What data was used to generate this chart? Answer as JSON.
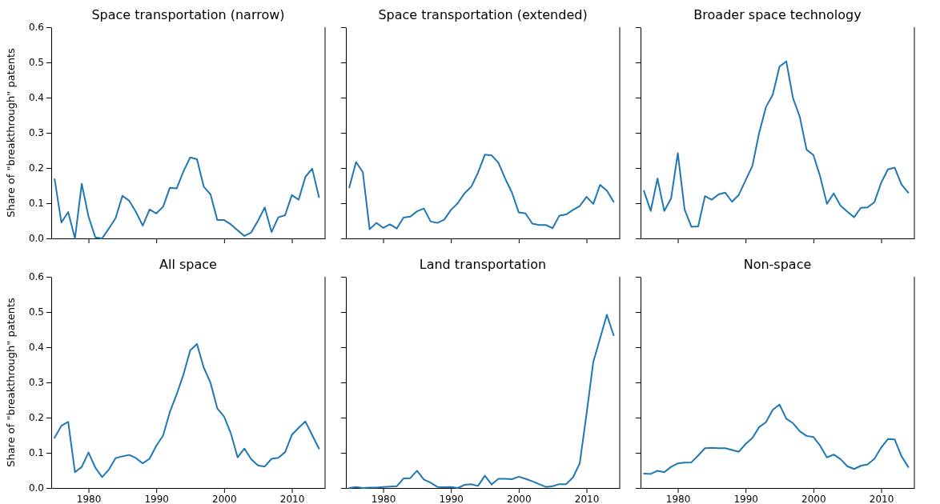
{
  "chart_data": [
    {
      "type": "line",
      "title": "Space transportation (narrow)",
      "ylabel": "Share of \"breakthrough\" patents",
      "tick_labels": "y",
      "xlim": [
        1974.5,
        2014.9
      ],
      "xticks": [
        1980,
        1990,
        2000,
        2010
      ],
      "ylim": [
        0,
        0.6
      ],
      "yticks": [
        {
          "value": 0,
          "label": "0.0"
        },
        0.1,
        0.2,
        0.3,
        0.4,
        0.5,
        0.6
      ],
      "x": [
        1975,
        1976,
        1977,
        1978,
        1979,
        1980,
        1981,
        1982,
        1983,
        1984,
        1985,
        1986,
        1987,
        1988,
        1989,
        1990,
        1991,
        1992,
        1993,
        1994,
        1995,
        1996,
        1997,
        1998,
        1999,
        2000,
        2001,
        2002,
        2003,
        2004,
        2005,
        2006,
        2007,
        2008,
        2009,
        2010,
        2011,
        2012,
        2013,
        2014
      ],
      "series": [
        {
          "color": "#1f77b4",
          "values": [
            0.168,
            0.045,
            0.075,
            0.0,
            0.155,
            0.062,
            0.003,
            0.0,
            0.028,
            0.058,
            0.121,
            0.107,
            0.075,
            0.036,
            0.082,
            0.071,
            0.09,
            0.144,
            0.142,
            0.19,
            0.23,
            0.225,
            0.147,
            0.125,
            0.052,
            0.052,
            0.04,
            0.023,
            0.007,
            0.017,
            0.05,
            0.088,
            0.018,
            0.06,
            0.066,
            0.123,
            0.11,
            0.175,
            0.198,
            0.117
          ]
        }
      ]
    },
    {
      "type": "line",
      "title": "Space transportation (extended)",
      "tick_labels": false,
      "xlim": [
        1974.5,
        2014.9
      ],
      "xticks": [
        1980,
        1990,
        2000,
        2010
      ],
      "ylim": [
        0,
        0.6
      ],
      "yticks": [
        0,
        0.1,
        0.2,
        0.3,
        0.4,
        0.5,
        0.6
      ],
      "x": [
        1975,
        1976,
        1977,
        1978,
        1979,
        1980,
        1981,
        1982,
        1983,
        1984,
        1985,
        1986,
        1987,
        1988,
        1989,
        1990,
        1991,
        1992,
        1993,
        1994,
        1995,
        1996,
        1997,
        1998,
        1999,
        2000,
        2001,
        2002,
        2003,
        2004,
        2005,
        2006,
        2007,
        2008,
        2009,
        2010,
        2011,
        2012,
        2013,
        2014
      ],
      "series": [
        {
          "color": "#1f77b4",
          "values": [
            0.145,
            0.217,
            0.188,
            0.026,
            0.044,
            0.03,
            0.04,
            0.028,
            0.059,
            0.062,
            0.077,
            0.085,
            0.048,
            0.044,
            0.053,
            0.081,
            0.1,
            0.128,
            0.147,
            0.187,
            0.238,
            0.236,
            0.215,
            0.17,
            0.13,
            0.074,
            0.071,
            0.042,
            0.038,
            0.038,
            0.029,
            0.065,
            0.068,
            0.081,
            0.092,
            0.118,
            0.098,
            0.152,
            0.136,
            0.104
          ]
        }
      ]
    },
    {
      "type": "line",
      "title": "Broader space technology",
      "tick_labels": false,
      "xlim": [
        1974.5,
        2014.9
      ],
      "xticks": [
        1980,
        1990,
        2000,
        2010
      ],
      "ylim": [
        0,
        0.6
      ],
      "yticks": [
        0,
        0.1,
        0.2,
        0.3,
        0.4,
        0.5,
        0.6
      ],
      "x": [
        1975,
        1976,
        1977,
        1978,
        1979,
        1980,
        1981,
        1982,
        1983,
        1984,
        1985,
        1986,
        1987,
        1988,
        1989,
        1990,
        1991,
        1992,
        1993,
        1994,
        1995,
        1996,
        1997,
        1998,
        1999,
        2000,
        2001,
        2002,
        2003,
        2004,
        2005,
        2006,
        2007,
        2008,
        2009,
        2010,
        2011,
        2012,
        2013,
        2014
      ],
      "series": [
        {
          "color": "#1f77b4",
          "values": [
            0.135,
            0.078,
            0.17,
            0.078,
            0.113,
            0.242,
            0.082,
            0.033,
            0.034,
            0.12,
            0.11,
            0.125,
            0.13,
            0.104,
            0.124,
            0.165,
            0.206,
            0.3,
            0.373,
            0.408,
            0.488,
            0.503,
            0.398,
            0.345,
            0.252,
            0.237,
            0.176,
            0.098,
            0.128,
            0.093,
            0.076,
            0.06,
            0.087,
            0.088,
            0.103,
            0.158,
            0.196,
            0.201,
            0.153,
            0.13
          ]
        }
      ]
    },
    {
      "type": "line",
      "title": "All space",
      "ylabel": "Share of \"breakthrough\" patents",
      "xlim": [
        1974.5,
        2014.9
      ],
      "xticks": [
        1980,
        1990,
        2000,
        2010
      ],
      "ylim": [
        0,
        0.6
      ],
      "yticks": [
        {
          "value": 0,
          "label": "0.0"
        },
        0.1,
        0.2,
        0.3,
        0.4,
        0.5,
        0.6
      ],
      "x": [
        1975,
        1976,
        1977,
        1978,
        1979,
        1980,
        1981,
        1982,
        1983,
        1984,
        1985,
        1986,
        1987,
        1988,
        1989,
        1990,
        1991,
        1992,
        1993,
        1994,
        1995,
        1996,
        1997,
        1998,
        1999,
        2000,
        2001,
        2002,
        2003,
        2004,
        2005,
        2006,
        2007,
        2008,
        2009,
        2010,
        2011,
        2012,
        2013,
        2014
      ],
      "series": [
        {
          "color": "#1f77b4",
          "values": [
            0.143,
            0.177,
            0.188,
            0.045,
            0.06,
            0.101,
            0.058,
            0.031,
            0.052,
            0.085,
            0.09,
            0.094,
            0.085,
            0.07,
            0.083,
            0.12,
            0.149,
            0.216,
            0.266,
            0.322,
            0.391,
            0.409,
            0.342,
            0.299,
            0.226,
            0.203,
            0.155,
            0.087,
            0.112,
            0.082,
            0.064,
            0.061,
            0.083,
            0.086,
            0.102,
            0.151,
            0.171,
            0.189,
            0.15,
            0.112
          ]
        }
      ]
    },
    {
      "type": "line",
      "title": "Land transportation",
      "tick_labels": "x",
      "xlim": [
        1974.5,
        2014.9
      ],
      "xticks": [
        1980,
        1990,
        2000,
        2010
      ],
      "ylim": [
        0,
        0.6
      ],
      "yticks": [
        0,
        0.1,
        0.2,
        0.3,
        0.4,
        0.5,
        0.6
      ],
      "x": [
        1975,
        1976,
        1977,
        1978,
        1979,
        1980,
        1981,
        1982,
        1983,
        1984,
        1985,
        1986,
        1987,
        1988,
        1989,
        1990,
        1991,
        1992,
        1993,
        1994,
        1995,
        1996,
        1997,
        1998,
        1999,
        2000,
        2001,
        2002,
        2003,
        2004,
        2005,
        2006,
        2007,
        2008,
        2009,
        2010,
        2011,
        2012,
        2013,
        2014
      ],
      "series": [
        {
          "color": "#1f77b4",
          "values": [
            0.0,
            0.003,
            0.0,
            0.001,
            0.001,
            0.003,
            0.004,
            0.005,
            0.027,
            0.028,
            0.049,
            0.024,
            0.015,
            0.003,
            0.002,
            0.003,
            0.0,
            0.009,
            0.011,
            0.006,
            0.035,
            0.01,
            0.026,
            0.026,
            0.025,
            0.032,
            0.026,
            0.019,
            0.011,
            0.003,
            0.005,
            0.011,
            0.011,
            0.03,
            0.07,
            0.21,
            0.358,
            0.425,
            0.492,
            0.434
          ]
        }
      ]
    },
    {
      "type": "line",
      "title": "Non-space",
      "tick_labels": "x",
      "xlim": [
        1974.5,
        2014.9
      ],
      "xticks": [
        1980,
        1990,
        2000,
        2010
      ],
      "ylim": [
        0,
        0.6
      ],
      "yticks": [
        0,
        0.1,
        0.2,
        0.3,
        0.4,
        0.5,
        0.6
      ],
      "x": [
        1975,
        1976,
        1977,
        1978,
        1979,
        1980,
        1981,
        1982,
        1983,
        1984,
        1985,
        1986,
        1987,
        1988,
        1989,
        1990,
        1991,
        1992,
        1993,
        1994,
        1995,
        1996,
        1997,
        1998,
        1999,
        2000,
        2001,
        2002,
        2003,
        2004,
        2005,
        2006,
        2007,
        2008,
        2009,
        2010,
        2011,
        2012,
        2013,
        2014
      ],
      "series": [
        {
          "color": "#1f77b4",
          "values": [
            0.041,
            0.04,
            0.049,
            0.045,
            0.06,
            0.07,
            0.072,
            0.073,
            0.092,
            0.113,
            0.114,
            0.113,
            0.113,
            0.108,
            0.103,
            0.125,
            0.142,
            0.173,
            0.187,
            0.222,
            0.237,
            0.197,
            0.184,
            0.161,
            0.148,
            0.145,
            0.12,
            0.087,
            0.095,
            0.082,
            0.062,
            0.054,
            0.063,
            0.067,
            0.083,
            0.115,
            0.139,
            0.138,
            0.09,
            0.06
          ]
        }
      ]
    }
  ]
}
